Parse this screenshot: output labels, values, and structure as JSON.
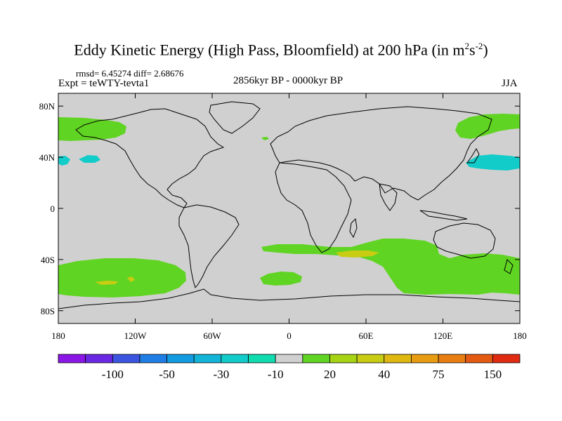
{
  "title": {
    "main": "Eddy Kinetic Energy (High Pass, Bloomfield) at 200 hPa (in m",
    "sup1": "2",
    "mid": "s",
    "sup2": "-2",
    "end": ")"
  },
  "stats": "rmsd= 6.45274 diff= 2.68676",
  "experiment": "Expt = teWTY-tevta1",
  "period": "2856kyr BP - 0000kyr BP",
  "season": "JJA",
  "axes": {
    "lat_labels": [
      "80N",
      "40N",
      "0",
      "40S",
      "80S"
    ],
    "lat_values": [
      80,
      40,
      0,
      -40,
      -80
    ],
    "lon_labels": [
      "180",
      "120W",
      "60W",
      "0",
      "60E",
      "120E",
      "180"
    ],
    "lon_values": [
      -180,
      -120,
      -60,
      0,
      60,
      120,
      180
    ],
    "lat_range": [
      -90,
      90
    ],
    "lon_range": [
      -180,
      180
    ]
  },
  "colorbar": {
    "colors": [
      "#8a17e6",
      "#6b28e4",
      "#3c55e0",
      "#1f7ee6",
      "#129be0",
      "#12b5d8",
      "#12ccca",
      "#10dcb0",
      "#d0d0d0",
      "#60d422",
      "#a6d414",
      "#c8cc12",
      "#e0b812",
      "#e89c12",
      "#e87e12",
      "#e45a12",
      "#e02a12"
    ],
    "labels": [
      "-100",
      "-50",
      "-30",
      "-10",
      "20",
      "40",
      "75",
      "150"
    ],
    "label_boundaries": [
      2,
      4,
      6,
      8,
      10,
      12,
      14,
      16
    ]
  },
  "colors": {
    "background_field": "#d0d0d0",
    "positive_light": "#60d422",
    "positive_strong": "#c8cc12",
    "negative_light": "#12ccca",
    "coast": "#000000"
  }
}
